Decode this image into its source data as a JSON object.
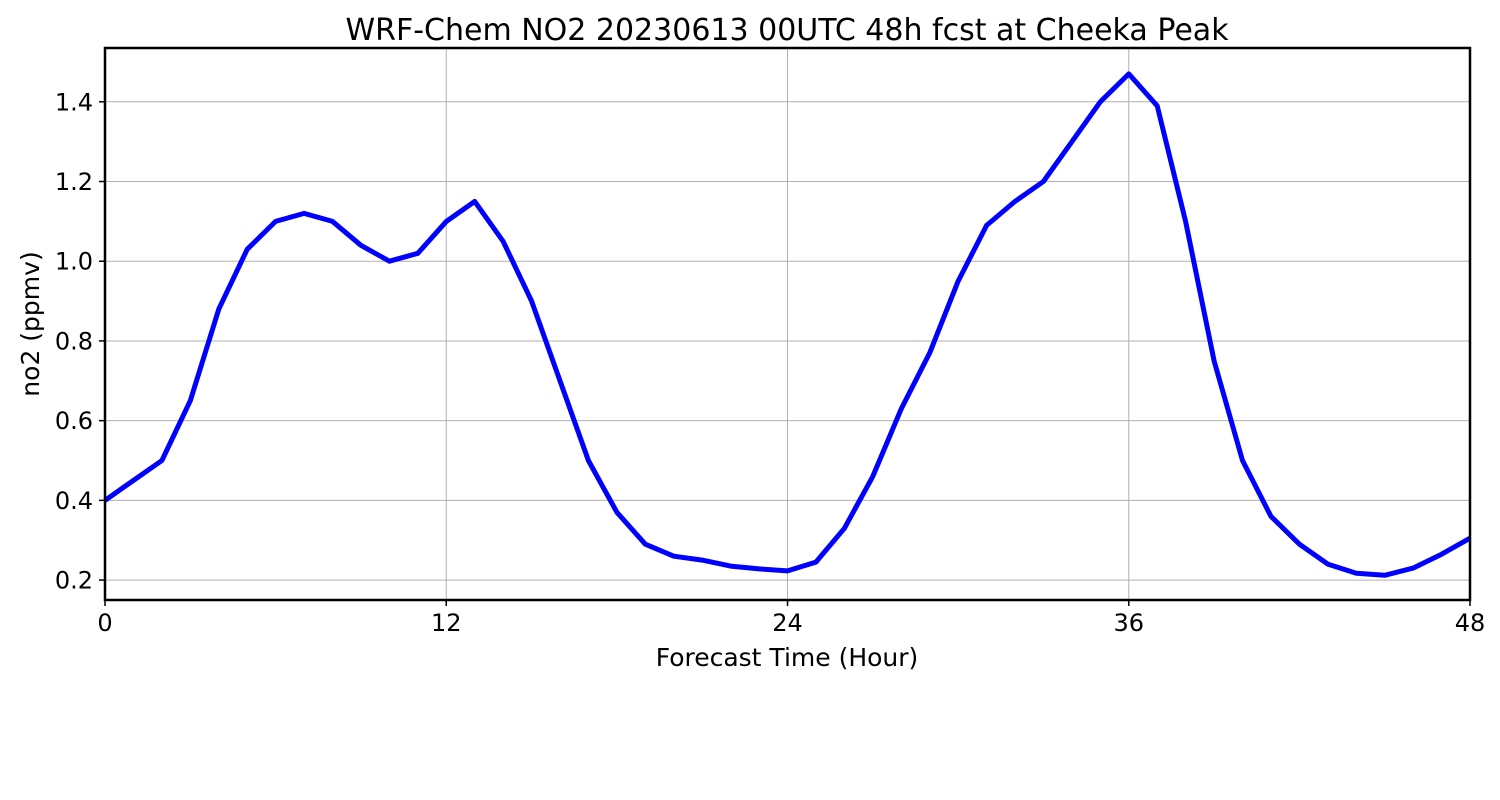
{
  "chart_data": {
    "type": "line",
    "title": "WRF-Chem NO2  20230613 00UTC 48h fcst at Cheeka Peak",
    "xlabel": "Forecast Time (Hour)",
    "ylabel": "no2  (ppmv)",
    "xlim": [
      0,
      48
    ],
    "ylim": [
      0.15,
      1.535
    ],
    "xticks": [
      0,
      12,
      24,
      36,
      48
    ],
    "xtick_labels": [
      "0",
      "12",
      "24",
      "36",
      "48"
    ],
    "yticks": [
      0.2,
      0.4,
      0.6,
      0.8,
      1.0,
      1.2,
      1.4
    ],
    "ytick_labels": [
      "0.2",
      "0.4",
      "0.6",
      "0.8",
      "1.0",
      "1.2",
      "1.4"
    ],
    "grid": true,
    "series": [
      {
        "color": "#0000ff",
        "x": [
          0,
          1,
          2,
          3,
          4,
          5,
          6,
          7,
          8,
          9,
          10,
          11,
          12,
          13,
          14,
          15,
          16,
          17,
          18,
          19,
          20,
          21,
          22,
          23,
          24,
          25,
          26,
          27,
          28,
          29,
          30,
          31,
          32,
          33,
          34,
          35,
          36,
          37,
          38,
          39,
          40,
          41,
          42,
          43,
          44,
          45,
          46,
          47,
          48
        ],
        "values": [
          0.4,
          0.45,
          0.5,
          0.65,
          0.88,
          1.03,
          1.1,
          1.12,
          1.1,
          1.04,
          1.0,
          1.02,
          1.1,
          1.15,
          1.05,
          0.9,
          0.7,
          0.5,
          0.37,
          0.29,
          0.26,
          0.25,
          0.235,
          0.228,
          0.223,
          0.245,
          0.33,
          0.46,
          0.63,
          0.77,
          0.95,
          1.09,
          1.15,
          1.2,
          1.3,
          1.4,
          1.47,
          1.39,
          1.1,
          0.75,
          0.5,
          0.36,
          0.29,
          0.24,
          0.217,
          0.212,
          0.23,
          0.265,
          0.305
        ]
      }
    ]
  }
}
